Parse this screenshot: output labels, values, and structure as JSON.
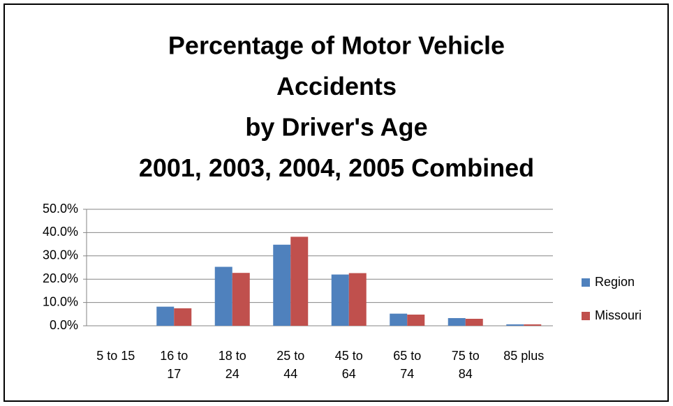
{
  "chart_data": {
    "type": "bar",
    "title": [
      "Percentage of Motor Vehicle",
      "Accidents",
      "by Driver's Age",
      "2001, 2003, 2004, 2005 Combined"
    ],
    "categories": [
      "5 to 15",
      "16 to 17",
      "18 to 24",
      "25 to 44",
      "45 to 64",
      "65 to 74",
      "75 to 84",
      "85 plus"
    ],
    "series": [
      {
        "name": "Region",
        "color": "#4f81bd",
        "values": [
          0,
          8.2,
          25.3,
          34.8,
          22.0,
          5.2,
          3.3,
          0.6
        ]
      },
      {
        "name": "Missouri",
        "color": "#c0504d",
        "values": [
          0,
          7.5,
          22.7,
          38.2,
          22.6,
          4.8,
          3.0,
          0.6
        ]
      }
    ],
    "ylim": [
      0,
      50
    ],
    "yticks": [
      {
        "value": 0,
        "label": "0.0%"
      },
      {
        "value": 10,
        "label": "10.0%"
      },
      {
        "value": 20,
        "label": "20.0%"
      },
      {
        "value": 30,
        "label": "30.0%"
      },
      {
        "value": 40,
        "label": "40.0%"
      },
      {
        "value": 50,
        "label": "50.0%"
      }
    ],
    "grid": true,
    "legend": "right"
  }
}
